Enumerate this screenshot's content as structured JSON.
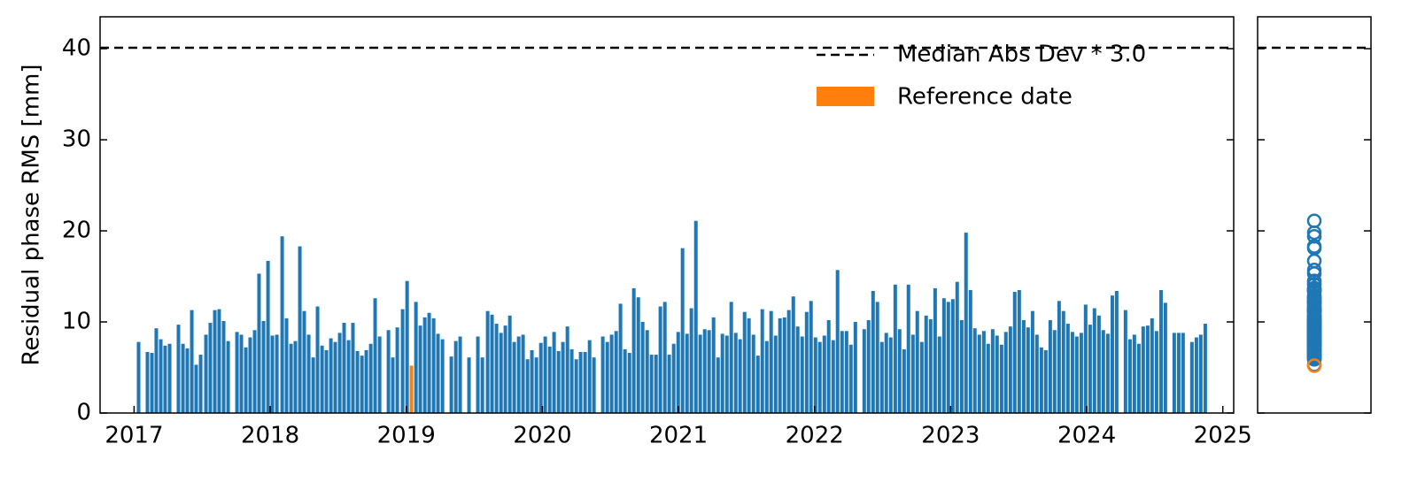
{
  "chart_data": {
    "type": "bar",
    "ylabel": "Residual phase RMS [mm]",
    "x": [
      2017.033,
      2017.098,
      2017.131,
      2017.163,
      2017.196,
      2017.228,
      2017.261,
      2017.326,
      2017.359,
      2017.391,
      2017.424,
      2017.456,
      2017.489,
      2017.528,
      2017.56,
      2017.593,
      2017.625,
      2017.658,
      2017.691,
      2017.756,
      2017.788,
      2017.821,
      2017.853,
      2017.886,
      2017.918,
      2017.951,
      2017.984,
      2018.016,
      2018.049,
      2018.088,
      2018.12,
      2018.153,
      2018.185,
      2018.218,
      2018.25,
      2018.283,
      2018.316,
      2018.348,
      2018.381,
      2018.413,
      2018.446,
      2018.478,
      2018.511,
      2018.543,
      2018.576,
      2018.608,
      2018.641,
      2018.674,
      2018.706,
      2018.739,
      2018.771,
      2018.804,
      2018.869,
      2018.901,
      2018.934,
      2018.973,
      2019.006,
      2019.071,
      2019.103,
      2019.136,
      2019.168,
      2019.201,
      2019.233,
      2019.266,
      2019.331,
      2019.364,
      2019.396,
      2019.461,
      2019.526,
      2019.559,
      2019.598,
      2019.63,
      2019.663,
      2019.696,
      2019.728,
      2019.761,
      2019.793,
      2019.826,
      2019.858,
      2019.891,
      2019.923,
      2019.956,
      2019.989,
      2020.021,
      2020.054,
      2020.086,
      2020.119,
      2020.151,
      2020.184,
      2020.216,
      2020.249,
      2020.281,
      2020.314,
      2020.347,
      2020.379,
      2020.444,
      2020.477,
      2020.509,
      2020.542,
      2020.574,
      2020.607,
      2020.64,
      2020.672,
      2020.705,
      2020.737,
      2020.77,
      2020.802,
      2020.835,
      2020.867,
      2020.9,
      2020.932,
      2020.965,
      2020.998,
      2021.03,
      2021.063,
      2021.095,
      2021.128,
      2021.16,
      2021.193,
      2021.225,
      2021.258,
      2021.291,
      2021.323,
      2021.356,
      2021.388,
      2021.421,
      2021.453,
      2021.486,
      2021.518,
      2021.551,
      2021.584,
      2021.616,
      2021.649,
      2021.681,
      2021.714,
      2021.746,
      2021.779,
      2021.811,
      2021.844,
      2021.876,
      2021.909,
      2021.942,
      2021.974,
      2022.007,
      2022.039,
      2022.072,
      2022.104,
      2022.137,
      2022.169,
      2022.202,
      2022.235,
      2022.267,
      2022.3,
      2022.365,
      2022.397,
      2022.43,
      2022.462,
      2022.495,
      2022.527,
      2022.56,
      2022.593,
      2022.625,
      2022.658,
      2022.69,
      2022.723,
      2022.755,
      2022.788,
      2022.82,
      2022.853,
      2022.886,
      2022.918,
      2022.951,
      2022.983,
      2023.016,
      2023.048,
      2023.081,
      2023.113,
      2023.146,
      2023.178,
      2023.211,
      2023.244,
      2023.276,
      2023.309,
      2023.341,
      2023.374,
      2023.406,
      2023.439,
      2023.471,
      2023.504,
      2023.537,
      2023.569,
      2023.602,
      2023.634,
      2023.667,
      2023.699,
      2023.732,
      2023.764,
      2023.797,
      2023.829,
      2023.862,
      2023.895,
      2023.927,
      2023.96,
      2023.992,
      2024.025,
      2024.057,
      2024.09,
      2024.122,
      2024.155,
      2024.188,
      2024.22,
      2024.285,
      2024.318,
      2024.35,
      2024.383,
      2024.415,
      2024.448,
      2024.48,
      2024.513,
      2024.546,
      2024.578,
      2024.643,
      2024.676,
      2024.708,
      2024.773,
      2024.806,
      2024.838,
      2024.871
    ],
    "values": [
      7.8,
      6.7,
      6.6,
      9.3,
      8.1,
      7.4,
      7.6,
      9.7,
      7.6,
      7.1,
      11.3,
      5.3,
      6.4,
      8.6,
      9.9,
      11.3,
      11.4,
      10.1,
      7.9,
      8.9,
      8.6,
      7.2,
      8.3,
      9.1,
      15.3,
      10.1,
      16.7,
      8.5,
      8.6,
      19.4,
      10.4,
      7.6,
      7.9,
      18.3,
      11.2,
      8.6,
      6.1,
      11.7,
      7.4,
      6.9,
      8.2,
      7.8,
      8.8,
      9.9,
      8.0,
      9.9,
      6.8,
      6.3,
      6.9,
      7.6,
      12.6,
      8.4,
      9.1,
      6.1,
      9.4,
      11.4,
      14.5,
      12.2,
      9.6,
      10.5,
      11.0,
      10.4,
      8.7,
      8.1,
      6.2,
      7.9,
      8.4,
      6.1,
      8.4,
      6.1,
      11.2,
      10.8,
      9.8,
      8.8,
      9.6,
      10.7,
      7.8,
      8.4,
      8.6,
      5.9,
      6.9,
      6.1,
      7.7,
      8.4,
      7.3,
      8.9,
      6.8,
      7.8,
      9.5,
      7.0,
      5.9,
      6.7,
      6.7,
      8.0,
      6.1,
      8.4,
      7.8,
      8.6,
      9.0,
      12.0,
      7.0,
      6.6,
      13.7,
      12.7,
      10.0,
      9.1,
      6.4,
      6.4,
      11.7,
      12.2,
      6.4,
      7.6,
      8.9,
      18.1,
      8.7,
      11.5,
      21.1,
      8.6,
      9.2,
      9.1,
      10.5,
      6.1,
      8.7,
      8.5,
      12.2,
      8.8,
      8.1,
      11.1,
      10.4,
      8.6,
      6.3,
      11.4,
      7.9,
      11.2,
      8.5,
      10.4,
      10.5,
      11.3,
      12.8,
      9.5,
      8.4,
      11.1,
      12.3,
      8.3,
      7.8,
      8.5,
      10.2,
      8.0,
      15.7,
      9.0,
      9.0,
      7.5,
      10.0,
      9.2,
      10.2,
      13.4,
      12.2,
      7.8,
      8.8,
      8.3,
      14.1,
      9.2,
      7.0,
      14.1,
      8.6,
      11.2,
      7.8,
      10.7,
      10.3,
      13.7,
      8.4,
      12.6,
      12.2,
      12.5,
      14.4,
      10.2,
      19.8,
      13.5,
      9.3,
      8.6,
      9.0,
      7.6,
      9.2,
      8.5,
      7.5,
      8.9,
      9.5,
      13.3,
      13.5,
      10.2,
      9.4,
      11.2,
      8.6,
      7.2,
      6.9,
      10.2,
      9.1,
      12.3,
      11.2,
      9.8,
      8.9,
      8.4,
      8.8,
      11.9,
      9.7,
      11.5,
      10.7,
      9.1,
      8.7,
      12.9,
      13.4,
      11.3,
      8.1,
      8.6,
      7.6,
      9.5,
      9.6,
      10.4,
      9.0,
      13.5,
      12.1,
      8.8,
      8.8,
      8.8,
      7.8,
      8.3,
      8.6,
      9.8
    ],
    "color": "#1f77b4",
    "reference": {
      "name": "Reference date",
      "x": 2019.038,
      "value": 5.2,
      "color": "#ff7f0e"
    },
    "threshold": {
      "name": "Median Abs Dev * 3.0",
      "value": 40.1,
      "color": "#000000"
    },
    "xlim": [
      2016.75,
      2025.08
    ],
    "xticks": [
      2017,
      2018,
      2019,
      2020,
      2021,
      2022,
      2023,
      2024,
      2025
    ],
    "ylim": [
      0,
      43.5
    ],
    "yticks": [
      0,
      10,
      20,
      30,
      40
    ],
    "legend": "upper right"
  }
}
